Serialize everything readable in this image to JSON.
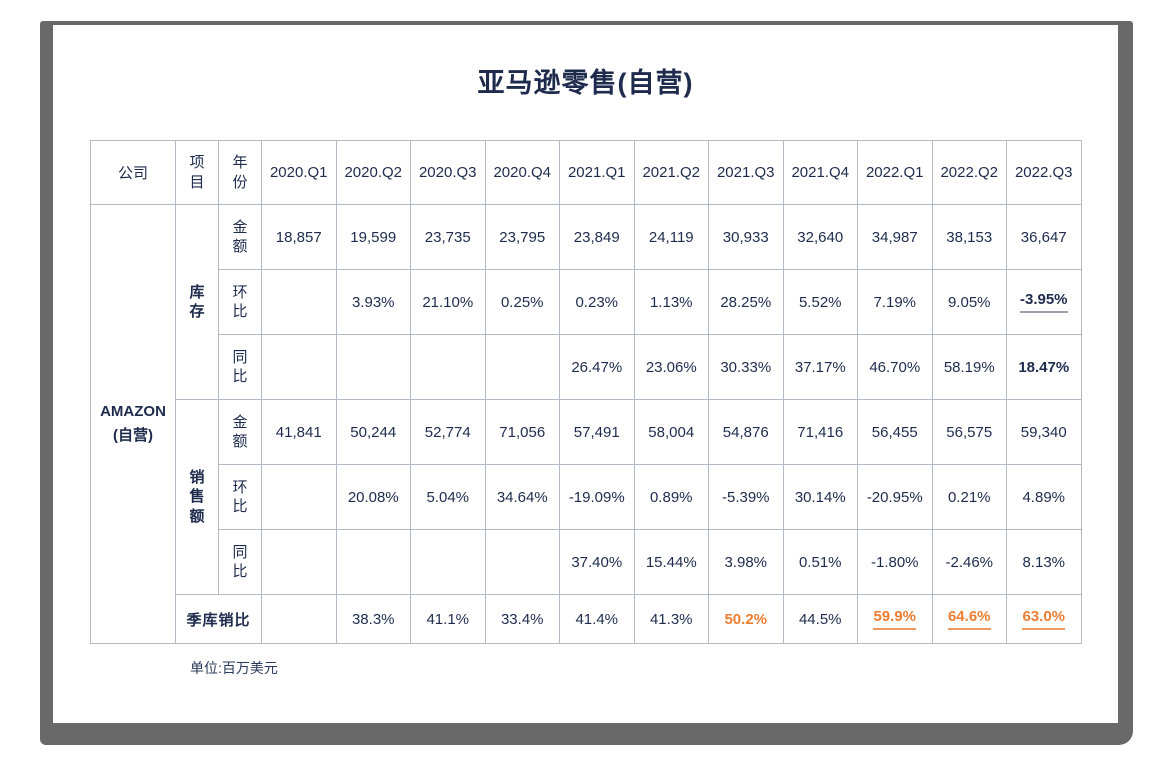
{
  "page": {
    "title": "亚马逊零售(自营)",
    "footnote": "单位:百万美元"
  },
  "colors": {
    "text_navy": "#1e2b4d",
    "accent_orange": "#ed7d31",
    "grid_border": "#b3bac6",
    "frame_grey": "#696969",
    "underline_grey": "#9aa0ab"
  },
  "company": {
    "line1": "AMAZON",
    "line2": "(自营)"
  },
  "table": {
    "column_headers": [
      "公司",
      "项目",
      "年份",
      "2020.Q1",
      "2020.Q2",
      "2020.Q3",
      "2020.Q4",
      "2021.Q1",
      "2021.Q2",
      "2021.Q3",
      "2021.Q4",
      "2022.Q1",
      "2022.Q2",
      "2022.Q3"
    ],
    "stacked_header_indexes": [
      1,
      2
    ],
    "sections": [
      {
        "label": "库存",
        "rows": [
          {
            "label": "金额",
            "values": [
              "18,857",
              "19,599",
              "23,735",
              "23,795",
              "23,849",
              "24,119",
              "30,933",
              "32,640",
              "34,987",
              "38,153",
              "36,647"
            ],
            "styles": {}
          },
          {
            "label": "环比",
            "values": [
              "",
              "3.93%",
              "21.10%",
              "0.25%",
              "0.23%",
              "1.13%",
              "28.25%",
              "5.52%",
              "7.19%",
              "9.05%",
              "-3.95%"
            ],
            "styles": {
              "10": "bold underline-grey"
            }
          },
          {
            "label": "同比",
            "values": [
              "",
              "",
              "",
              "",
              "26.47%",
              "23.06%",
              "30.33%",
              "37.17%",
              "46.70%",
              "58.19%",
              "18.47%"
            ],
            "styles": {
              "10": "bold"
            }
          }
        ]
      },
      {
        "label": "销售额",
        "rows": [
          {
            "label": "金额",
            "values": [
              "41,841",
              "50,244",
              "52,774",
              "71,056",
              "57,491",
              "58,004",
              "54,876",
              "71,416",
              "56,455",
              "56,575",
              "59,340"
            ],
            "styles": {}
          },
          {
            "label": "环比",
            "values": [
              "",
              "20.08%",
              "5.04%",
              "34.64%",
              "-19.09%",
              "0.89%",
              "-5.39%",
              "30.14%",
              "-20.95%",
              "0.21%",
              "4.89%"
            ],
            "styles": {}
          },
          {
            "label": "同比",
            "values": [
              "",
              "",
              "",
              "",
              "37.40%",
              "15.44%",
              "3.98%",
              "0.51%",
              "-1.80%",
              "-2.46%",
              "8.13%"
            ],
            "styles": {}
          }
        ]
      }
    ],
    "ratio_row": {
      "label": "季库销比",
      "values": [
        "",
        "38.3%",
        "41.1%",
        "33.4%",
        "41.4%",
        "41.3%",
        "50.2%",
        "44.5%",
        "59.9%",
        "64.6%",
        "63.0%"
      ],
      "styles": {
        "6": "orange",
        "8": "orange underline-orange",
        "9": "orange underline-orange",
        "10": "orange underline-orange"
      }
    }
  },
  "chart_data": {
    "type": "table",
    "title": "亚马逊零售(自营)",
    "unit": "百万美元",
    "company": "AMAZON (自营)",
    "quarters": [
      "2020.Q1",
      "2020.Q2",
      "2020.Q3",
      "2020.Q4",
      "2021.Q1",
      "2021.Q2",
      "2021.Q3",
      "2021.Q4",
      "2022.Q1",
      "2022.Q2",
      "2022.Q3"
    ],
    "series": [
      {
        "name": "库存-金额",
        "values": [
          18857,
          19599,
          23735,
          23795,
          23849,
          24119,
          30933,
          32640,
          34987,
          38153,
          36647
        ]
      },
      {
        "name": "库存-环比",
        "values": [
          null,
          3.93,
          21.1,
          0.25,
          0.23,
          1.13,
          28.25,
          5.52,
          7.19,
          9.05,
          -3.95
        ],
        "unit": "%"
      },
      {
        "name": "库存-同比",
        "values": [
          null,
          null,
          null,
          null,
          26.47,
          23.06,
          30.33,
          37.17,
          46.7,
          58.19,
          18.47
        ],
        "unit": "%"
      },
      {
        "name": "销售额-金额",
        "values": [
          41841,
          50244,
          52774,
          71056,
          57491,
          58004,
          54876,
          71416,
          56455,
          56575,
          59340
        ]
      },
      {
        "name": "销售额-环比",
        "values": [
          null,
          20.08,
          5.04,
          34.64,
          -19.09,
          0.89,
          -5.39,
          30.14,
          -20.95,
          0.21,
          4.89
        ],
        "unit": "%"
      },
      {
        "name": "销售额-同比",
        "values": [
          null,
          null,
          null,
          null,
          37.4,
          15.44,
          3.98,
          0.51,
          -1.8,
          -2.46,
          8.13
        ],
        "unit": "%"
      },
      {
        "name": "季库销比",
        "values": [
          null,
          38.3,
          41.1,
          33.4,
          41.4,
          41.3,
          50.2,
          44.5,
          59.9,
          64.6,
          63.0
        ],
        "unit": "%"
      }
    ]
  }
}
